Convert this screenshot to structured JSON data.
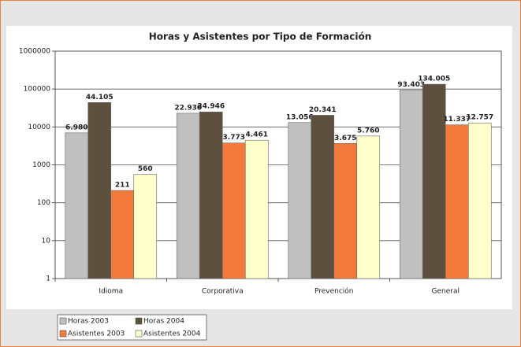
{
  "chart_data": {
    "type": "bar",
    "title": "Horas y Asistentes por Tipo de Formación",
    "categories": [
      "Idioma",
      "Corporativa",
      "Prevención",
      "General"
    ],
    "series": [
      {
        "name": "Horas 2003",
        "color": "#c0c0c0",
        "values": [
          6980,
          22930,
          13056,
          93403
        ],
        "value_labels": [
          "6.980",
          "22.930",
          "13.056",
          "93.403"
        ]
      },
      {
        "name": "Horas 2004",
        "color": "#5e503f",
        "values": [
          44105,
          24946,
          20341,
          134005
        ],
        "value_labels": [
          "44.105",
          "24.946",
          "20.341",
          "134.005"
        ]
      },
      {
        "name": "Asistentes 2003",
        "color": "#f47a3c",
        "values": [
          211,
          3773,
          3675,
          11337
        ],
        "value_labels": [
          "211",
          "3.773",
          "3.675",
          "11.337"
        ]
      },
      {
        "name": "Asistentes 2004",
        "color": "#ffffcc",
        "values": [
          560,
          4461,
          5760,
          12757
        ],
        "value_labels": [
          "560",
          "4.461",
          "5.760",
          "12.757"
        ]
      }
    ],
    "ylim": [
      1,
      1000000
    ],
    "yticks": [
      1,
      10,
      100,
      1000,
      10000,
      100000,
      1000000
    ],
    "log_scale": true,
    "grid": true,
    "legend": "bottom-left"
  }
}
